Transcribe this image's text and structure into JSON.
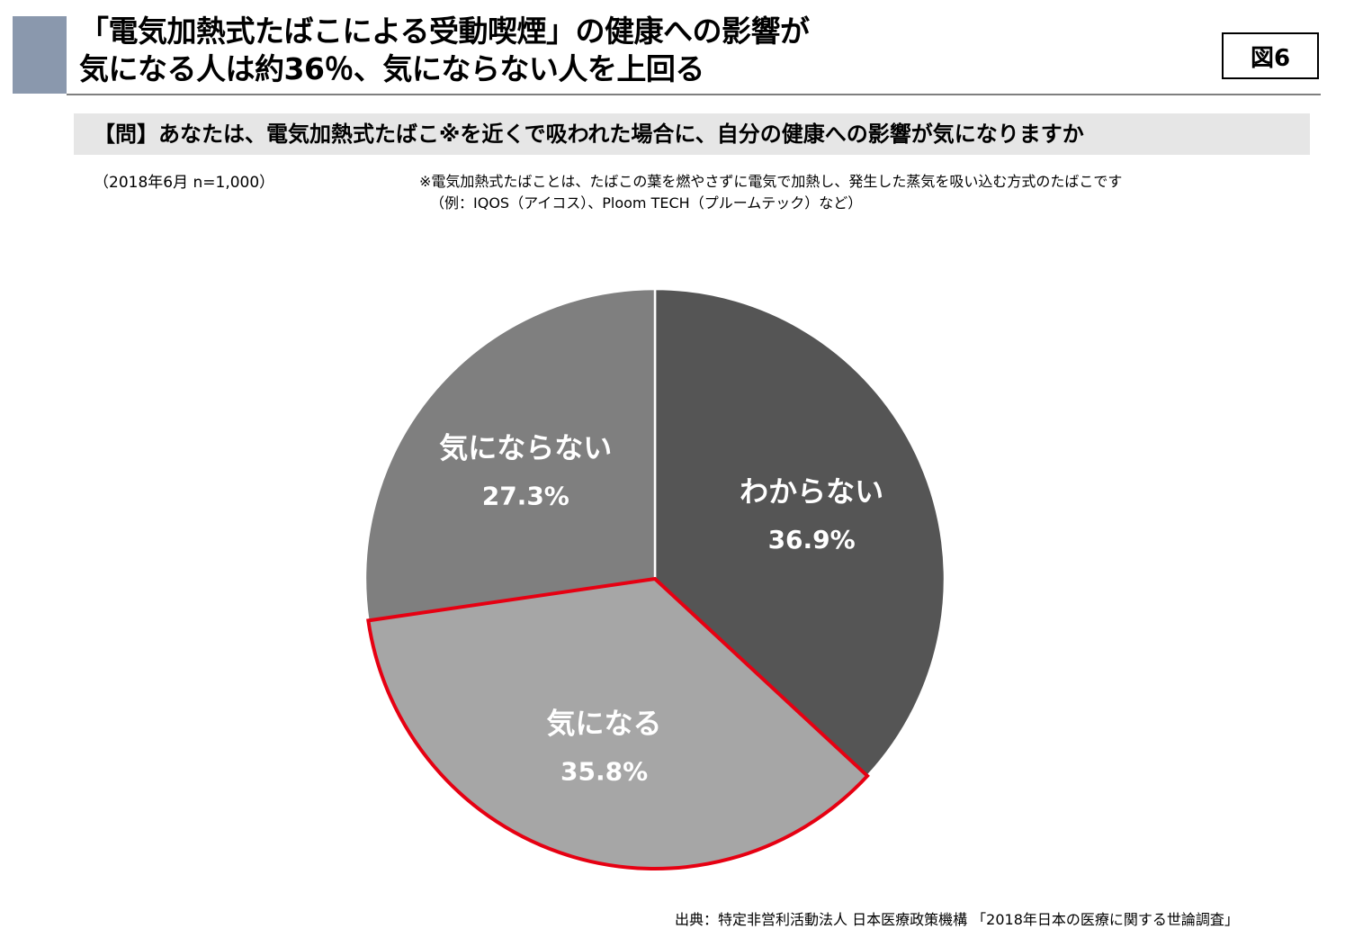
{
  "header": {
    "title_line1": "「電気加熱式たばこによる受動喫煙」の健康への影響が",
    "title_line2": "気になる人は約36％、気にならない人を上回る",
    "figure_label": "図6"
  },
  "question": "【問】あなたは、電気加熱式たばこ※を近くで吸われた場合に、自分の健康への影響が気になりますか",
  "meta": "（2018年6月 n=1,000）",
  "note": {
    "line1": "※電気加熱式たばことは、たばこの葉を燃やさずに電気で加熱し、発生した蒸気を吸い込む方式のたばこです",
    "line2": "（例：IQOS（アイコス）、Ploom TECH（プルームテック）など）"
  },
  "source": "出典：特定非営利活動法人 日本医療政策機構 「2018年日本の医療に関する世論調査」",
  "colors": {
    "accent_bar": "#8a98ad",
    "wakaranai": "#555555",
    "kininaru": "#a6a6a6",
    "kininaranai": "#7f7f7f",
    "highlight_outline": "#e60012",
    "slice_border": "#ffffff"
  },
  "chart_data": {
    "type": "pie",
    "start_angle_deg": 0,
    "direction": "clockwise",
    "slices": [
      {
        "label": "わからない",
        "value": 36.9,
        "value_label": "36.9%",
        "color": "#555555",
        "highlight": false
      },
      {
        "label": "気になる",
        "value": 35.8,
        "value_label": "35.8%",
        "color": "#a6a6a6",
        "highlight": true
      },
      {
        "label": "気にならない",
        "value": 27.3,
        "value_label": "27.3%",
        "color": "#7f7f7f",
        "highlight": false
      }
    ]
  }
}
